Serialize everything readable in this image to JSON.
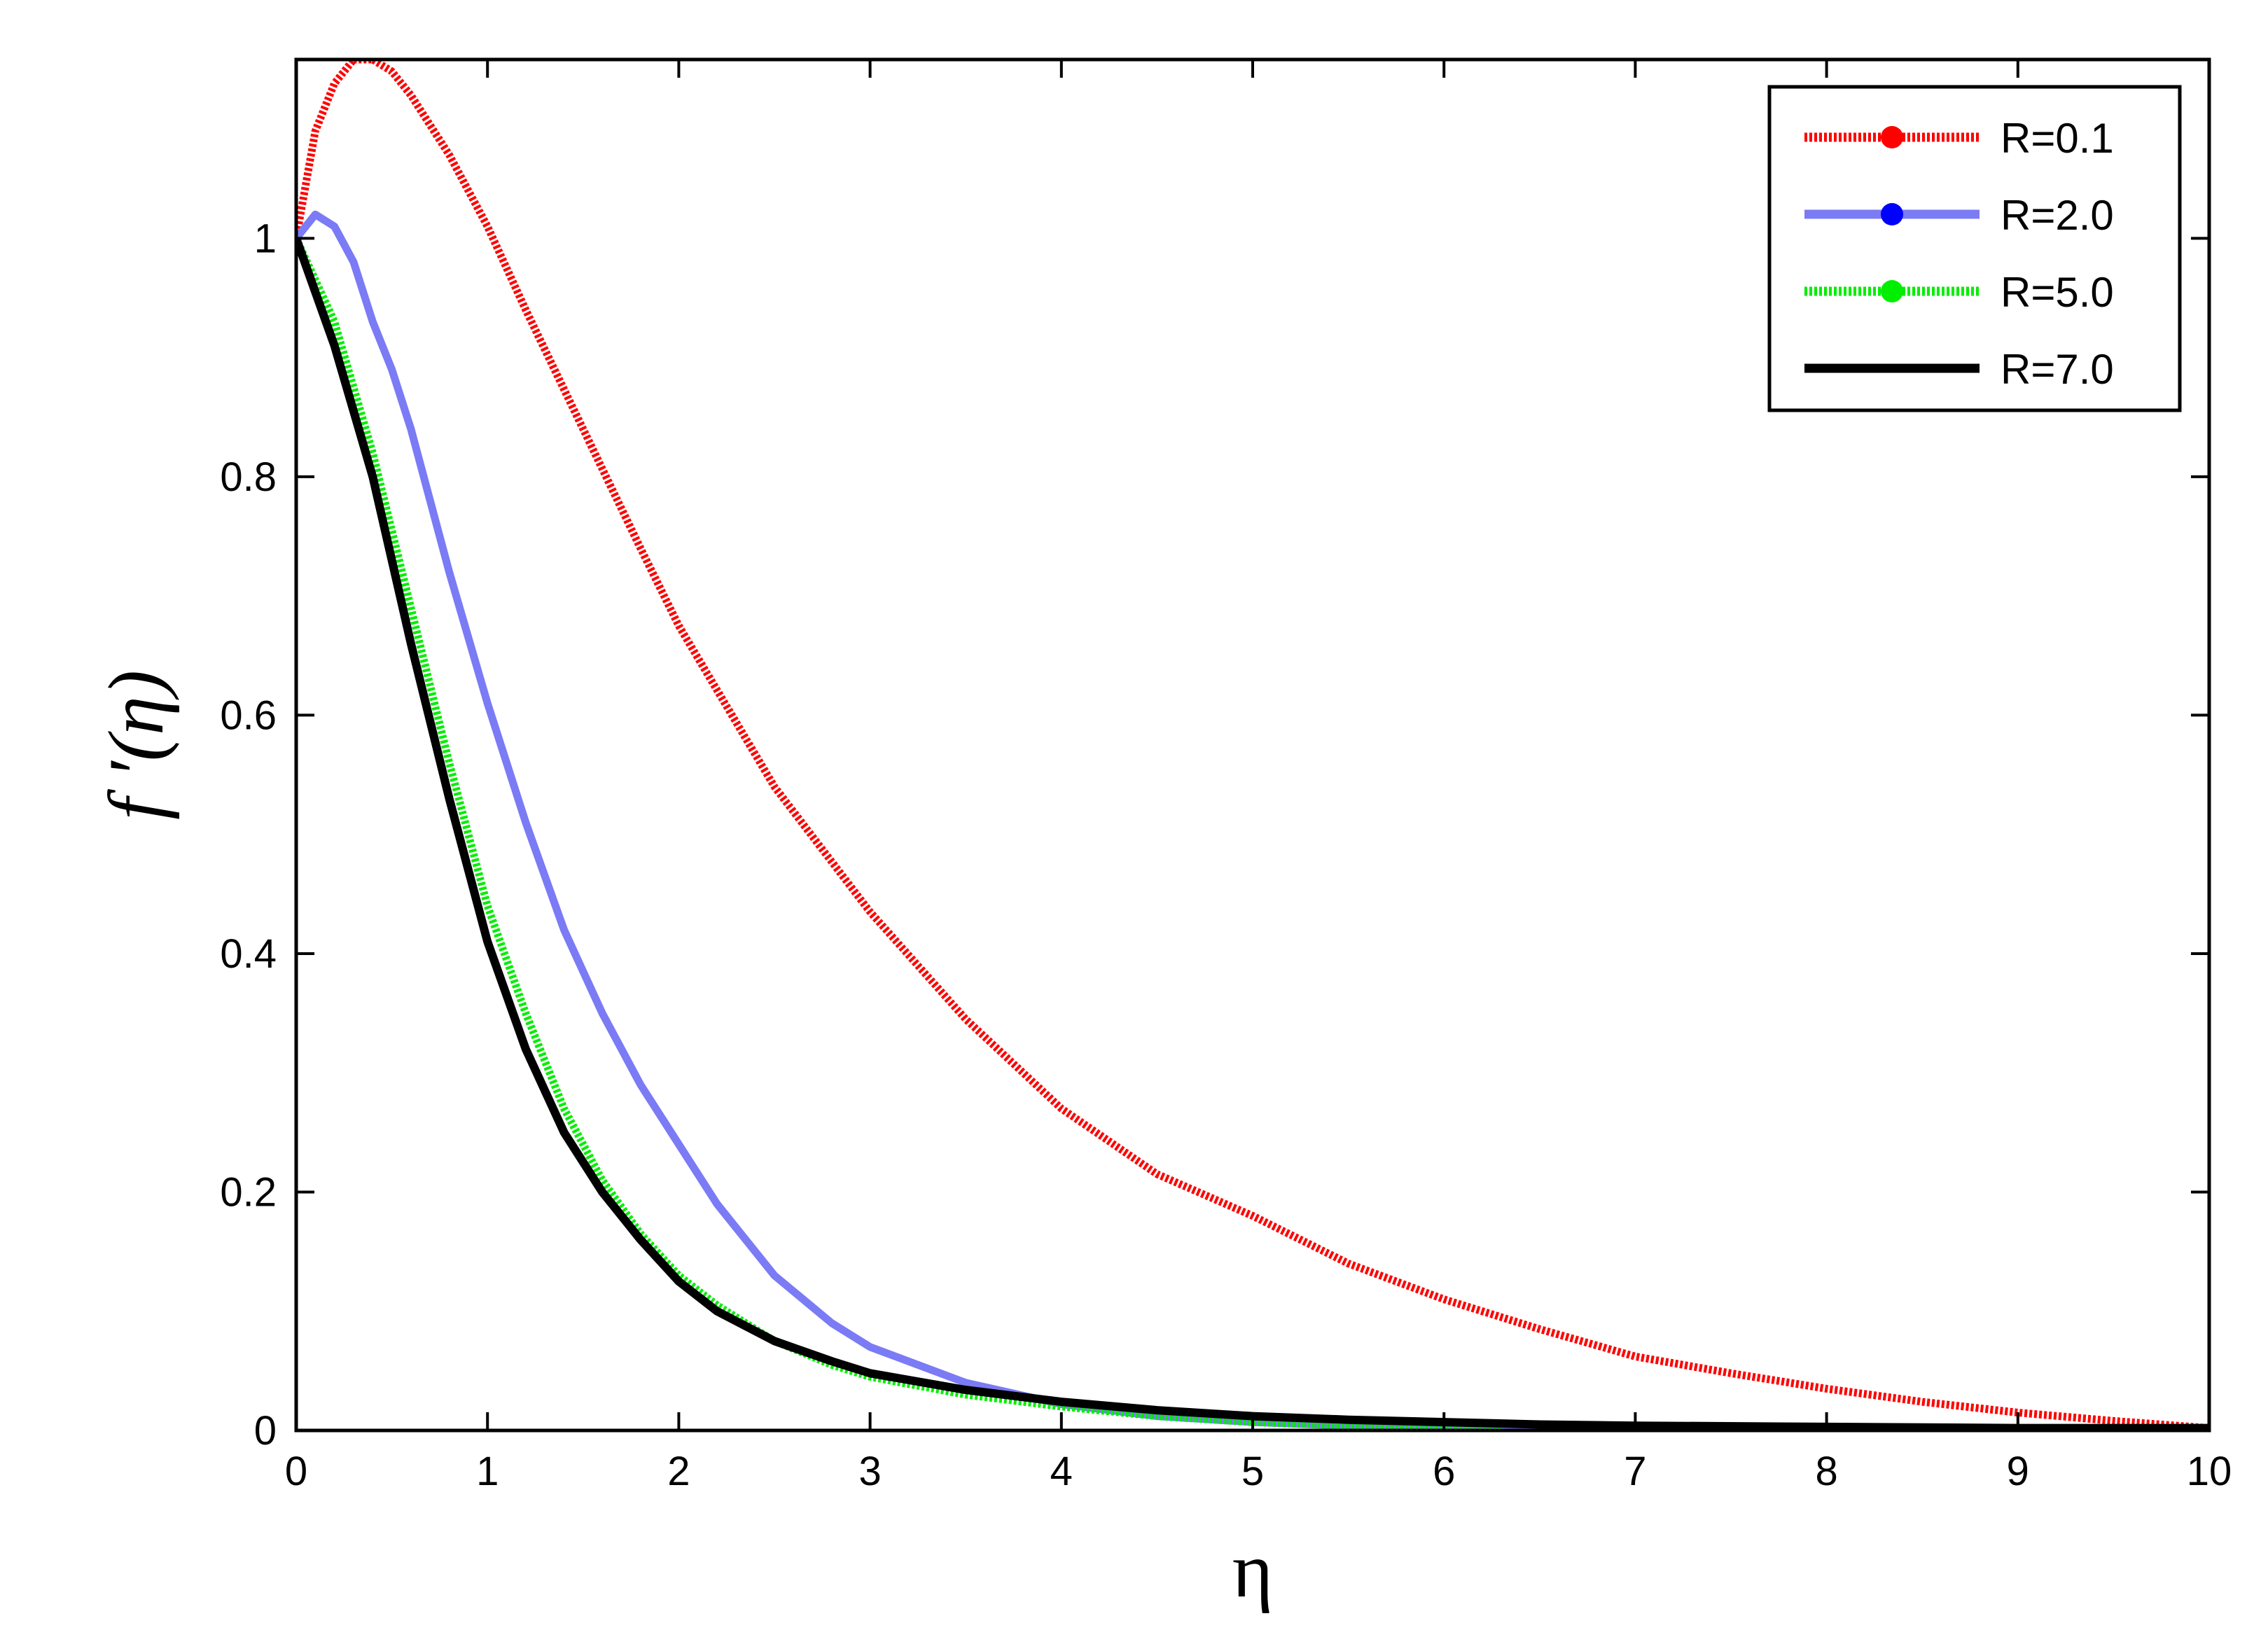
{
  "chart_data": {
    "type": "line",
    "xlabel": "η",
    "ylabel": "f ′(η)",
    "xlim": [
      0,
      10
    ],
    "ylim": [
      0,
      1.15
    ],
    "xticks": [
      0,
      1,
      2,
      3,
      4,
      5,
      6,
      7,
      8,
      9,
      10
    ],
    "xtick_labels": [
      "0",
      "1",
      "2",
      "3",
      "4",
      "5",
      "6",
      "7",
      "8",
      "9",
      "10"
    ],
    "yticks": [
      0,
      0.2,
      0.4,
      0.6,
      0.8,
      1
    ],
    "ytick_labels": [
      "0",
      "0.2",
      "0.4",
      "0.6",
      "0.8",
      "1"
    ],
    "grid": false,
    "legend_position": "top-right",
    "series": [
      {
        "name": "R=0.1",
        "color": "#ff0000",
        "style": "dotted",
        "x": [
          0,
          0.1,
          0.2,
          0.3,
          0.4,
          0.5,
          0.6,
          0.8,
          1.0,
          1.2,
          1.5,
          1.8,
          2.0,
          2.5,
          3.0,
          3.5,
          4.0,
          4.5,
          5.0,
          5.5,
          6.0,
          6.5,
          7.0,
          7.5,
          8.0,
          8.5,
          9.0,
          9.5,
          10.0
        ],
        "y": [
          1.0,
          1.09,
          1.13,
          1.15,
          1.15,
          1.14,
          1.12,
          1.07,
          1.01,
          0.94,
          0.84,
          0.74,
          0.675,
          0.54,
          0.435,
          0.345,
          0.27,
          0.215,
          0.18,
          0.14,
          0.11,
          0.085,
          0.062,
          0.048,
          0.035,
          0.024,
          0.015,
          0.008,
          0.002
        ]
      },
      {
        "name": "R=2.0",
        "color": "#7b7bf5",
        "style": "solid",
        "x": [
          0,
          0.1,
          0.2,
          0.3,
          0.4,
          0.5,
          0.6,
          0.8,
          1.0,
          1.2,
          1.4,
          1.6,
          1.8,
          2.0,
          2.2,
          2.5,
          2.8,
          3.0,
          3.5,
          4.0,
          4.5,
          5.0,
          5.5,
          6.0,
          6.5,
          7.0,
          8.0,
          9.0,
          10.0
        ],
        "y": [
          1.0,
          1.02,
          1.01,
          0.98,
          0.93,
          0.89,
          0.84,
          0.72,
          0.61,
          0.51,
          0.42,
          0.35,
          0.29,
          0.24,
          0.19,
          0.13,
          0.09,
          0.07,
          0.04,
          0.022,
          0.012,
          0.007,
          0.004,
          0.003,
          0.002,
          0.001,
          0.001,
          0.0,
          0.0
        ]
      },
      {
        "name": "R=5.0",
        "color": "#00ee00",
        "style": "dotted",
        "x": [
          0,
          0.2,
          0.4,
          0.6,
          0.8,
          1.0,
          1.2,
          1.4,
          1.6,
          1.8,
          2.0,
          2.2,
          2.5,
          2.8,
          3.0,
          3.5,
          4.0,
          4.5,
          5.0,
          5.5,
          6.0,
          6.3
        ],
        "y": [
          1.0,
          0.93,
          0.82,
          0.69,
          0.56,
          0.44,
          0.35,
          0.27,
          0.21,
          0.165,
          0.13,
          0.105,
          0.075,
          0.055,
          0.045,
          0.03,
          0.02,
          0.012,
          0.007,
          0.004,
          0.002,
          0.001
        ]
      },
      {
        "name": "R=7.0",
        "color": "#000000",
        "style": "solid",
        "x": [
          0,
          0.2,
          0.4,
          0.6,
          0.8,
          1.0,
          1.2,
          1.4,
          1.6,
          1.8,
          2.0,
          2.2,
          2.5,
          2.8,
          3.0,
          3.5,
          4.0,
          4.5,
          5.0,
          5.5,
          6.0,
          6.5,
          7.0,
          8.0,
          9.0,
          10.0
        ],
        "y": [
          1.0,
          0.91,
          0.8,
          0.66,
          0.53,
          0.41,
          0.32,
          0.25,
          0.2,
          0.16,
          0.125,
          0.1,
          0.075,
          0.058,
          0.048,
          0.034,
          0.024,
          0.017,
          0.012,
          0.009,
          0.007,
          0.005,
          0.004,
          0.003,
          0.002,
          0.002
        ]
      }
    ]
  }
}
